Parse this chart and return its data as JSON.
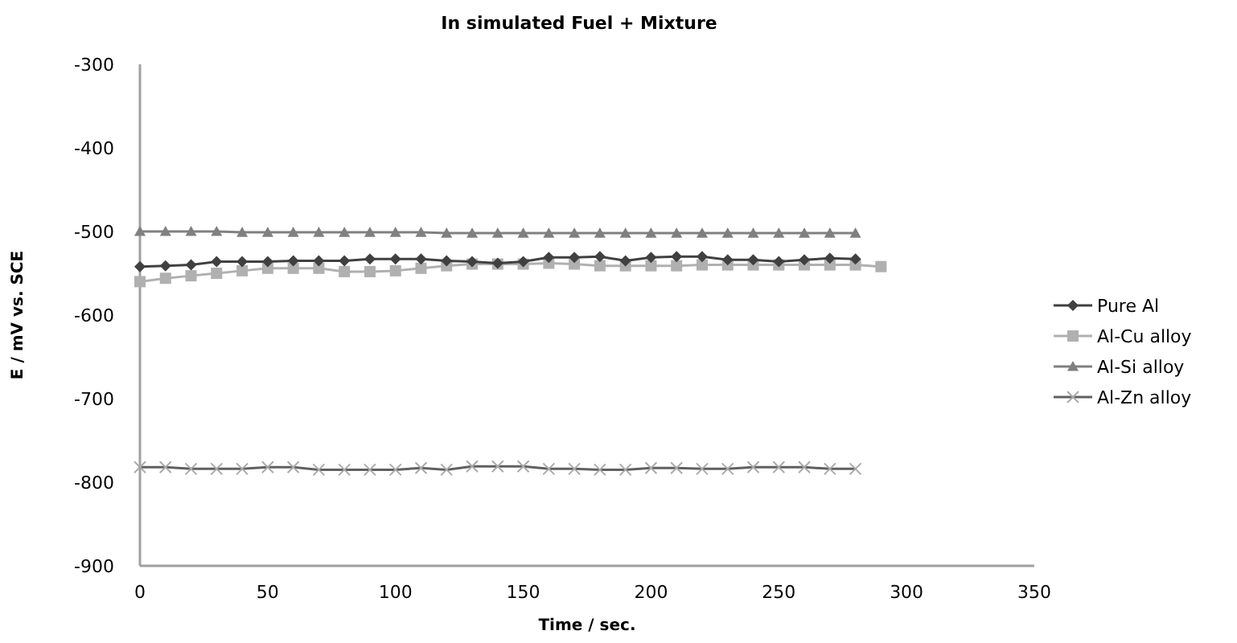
{
  "chart_data": {
    "type": "line",
    "title": "In simulated Fuel + Mixture",
    "xlabel": "Time / sec.",
    "ylabel": "E / mV vs. SCE",
    "xlim": [
      0,
      350
    ],
    "xticks": [
      0,
      50,
      100,
      150,
      200,
      250,
      300,
      350
    ],
    "ylim": [
      -900,
      -300
    ],
    "yticks": [
      -900,
      -800,
      -700,
      -600,
      -500,
      -400,
      -300
    ],
    "grid": false,
    "legend": "right",
    "x": [
      0,
      10,
      20,
      30,
      40,
      50,
      60,
      70,
      80,
      90,
      100,
      110,
      120,
      130,
      140,
      150,
      160,
      170,
      180,
      190,
      200,
      210,
      220,
      230,
      240,
      250,
      260,
      270,
      280
    ],
    "series": [
      {
        "name": "Pure Al",
        "color": "#404040",
        "marker": "diamond",
        "values": [
          -542,
          -541,
          -540,
          -536,
          -536,
          -536,
          -535,
          -535,
          -535,
          -533,
          -533,
          -533,
          -535,
          -536,
          -538,
          -536,
          -531,
          -531,
          -530,
          -535,
          -531,
          -530,
          -530,
          -534,
          -534,
          -536,
          -534,
          -532,
          -533
        ]
      },
      {
        "name": "Al-Cu alloy",
        "color": "#b0b0b0",
        "marker": "square",
        "x": [
          0,
          10,
          20,
          30,
          40,
          50,
          60,
          70,
          80,
          90,
          100,
          110,
          120,
          130,
          140,
          150,
          160,
          170,
          180,
          190,
          200,
          210,
          220,
          230,
          240,
          250,
          260,
          270,
          280,
          290
        ],
        "values": [
          -560,
          -556,
          -553,
          -550,
          -547,
          -544,
          -544,
          -544,
          -548,
          -548,
          -547,
          -544,
          -541,
          -539,
          -539,
          -539,
          -538,
          -539,
          -541,
          -541,
          -541,
          -541,
          -540,
          -540,
          -540,
          -540,
          -540,
          -540,
          -540,
          -542
        ]
      },
      {
        "name": "Al-Si alloy",
        "color": "#808080",
        "marker": "triangle",
        "values": [
          -500,
          -500,
          -500,
          -500,
          -501,
          -501,
          -501,
          -501,
          -501,
          -501,
          -501,
          -501,
          -502,
          -502,
          -502,
          -502,
          -502,
          -502,
          -502,
          -502,
          -502,
          -502,
          -502,
          -502,
          -502,
          -502,
          -502,
          -502,
          -502
        ]
      },
      {
        "name": "Al-Zn alloy",
        "color": "#606060",
        "marker": "cross",
        "values": [
          -782,
          -782,
          -784,
          -784,
          -784,
          -782,
          -782,
          -785,
          -785,
          -785,
          -785,
          -783,
          -785,
          -781,
          -781,
          -781,
          -784,
          -784,
          -785,
          -785,
          -783,
          -783,
          -784,
          -784,
          -782,
          -782,
          -782,
          -784,
          -784
        ]
      }
    ]
  }
}
